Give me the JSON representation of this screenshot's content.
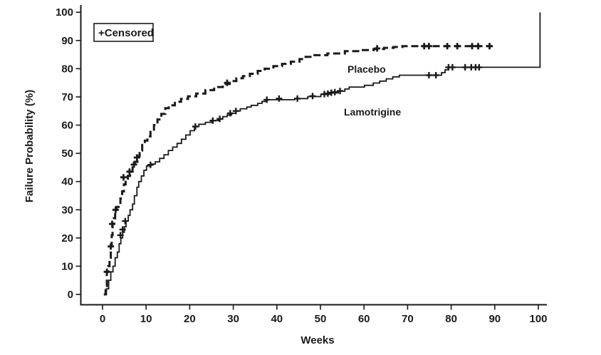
{
  "figure": {
    "background": "#ffffff",
    "ink_color": "#1a1a1a"
  },
  "legend": {
    "label": "+Censored"
  },
  "labels": {
    "placebo": "Placebo",
    "lamotrigine": "Lamotrigine"
  },
  "chart_data": {
    "type": "line",
    "subtype": "kaplan_meier_step",
    "title": "",
    "xlabel": "Weeks",
    "ylabel": "Failure Probability (%)",
    "xlim": [
      0,
      100
    ],
    "ylim": [
      0,
      100
    ],
    "x_ticks": [
      0,
      10,
      20,
      30,
      40,
      50,
      60,
      70,
      80,
      90,
      100
    ],
    "y_ticks": [
      0,
      10,
      20,
      30,
      40,
      50,
      60,
      70,
      80,
      90,
      100
    ],
    "grid": false,
    "legend_position": "top-left",
    "legend_note": "+Censored",
    "series": [
      {
        "name": "Placebo",
        "line_style": "dashed",
        "points": [
          [
            0.3,
            0
          ],
          [
            0.7,
            3
          ],
          [
            1,
            8
          ],
          [
            1.3,
            10
          ],
          [
            1.6,
            13
          ],
          [
            1.9,
            17
          ],
          [
            2.1,
            21
          ],
          [
            2.3,
            25
          ],
          [
            2.6,
            27
          ],
          [
            2.9,
            29
          ],
          [
            3.2,
            31
          ],
          [
            3.7,
            32
          ],
          [
            4.1,
            34
          ],
          [
            4.5,
            36.5
          ],
          [
            4.9,
            39
          ],
          [
            5.3,
            41
          ],
          [
            5.8,
            42
          ],
          [
            6.3,
            43.5
          ],
          [
            6.9,
            45
          ],
          [
            7.4,
            47
          ],
          [
            8,
            49
          ],
          [
            8.5,
            51
          ],
          [
            9.1,
            53
          ],
          [
            9.7,
            54.5
          ],
          [
            10.3,
            56
          ],
          [
            11,
            58
          ],
          [
            11.8,
            60
          ],
          [
            12.6,
            62
          ],
          [
            13.5,
            64
          ],
          [
            14.4,
            66
          ],
          [
            15.2,
            67
          ],
          [
            16.6,
            68.3
          ],
          [
            18,
            69.3
          ],
          [
            19.6,
            70.2
          ],
          [
            21.5,
            71.2
          ],
          [
            23.6,
            72.4
          ],
          [
            25.6,
            73.5
          ],
          [
            27.6,
            74.6
          ],
          [
            29.2,
            75.6
          ],
          [
            30.7,
            76.6
          ],
          [
            32.2,
            77.4
          ],
          [
            33.8,
            78.2
          ],
          [
            35.6,
            79.2
          ],
          [
            37.2,
            80
          ],
          [
            39.2,
            80.9
          ],
          [
            41.2,
            81.7
          ],
          [
            43.2,
            82.5
          ],
          [
            45.2,
            83.4
          ],
          [
            46.6,
            84.2
          ],
          [
            48.2,
            84.8
          ],
          [
            51.6,
            85.4
          ],
          [
            55.6,
            86.2
          ],
          [
            59.2,
            86.6
          ],
          [
            62.2,
            87
          ],
          [
            64.6,
            87.4
          ],
          [
            66.8,
            87.7
          ],
          [
            68.8,
            88
          ],
          [
            89.5,
            88
          ]
        ],
        "censored": [
          [
            1,
            8
          ],
          [
            1.9,
            17
          ],
          [
            2.2,
            25
          ],
          [
            3,
            30
          ],
          [
            4.8,
            41.5
          ],
          [
            6.2,
            43.5
          ],
          [
            7.2,
            46
          ],
          [
            7.9,
            48.5
          ],
          [
            28.6,
            75
          ],
          [
            63,
            87.2
          ],
          [
            73.8,
            88
          ],
          [
            74.9,
            88
          ],
          [
            79.1,
            88
          ],
          [
            81.4,
            88
          ],
          [
            84.8,
            88
          ],
          [
            86.2,
            88
          ],
          [
            88.8,
            88
          ]
        ]
      },
      {
        "name": "Lamotrigine",
        "line_style": "solid",
        "points": [
          [
            0.5,
            0
          ],
          [
            0.9,
            2
          ],
          [
            1.4,
            5
          ],
          [
            1.9,
            8
          ],
          [
            2.4,
            10
          ],
          [
            2.9,
            13
          ],
          [
            3.4,
            15
          ],
          [
            3.8,
            18
          ],
          [
            4.2,
            20
          ],
          [
            4.6,
            22
          ],
          [
            5,
            24
          ],
          [
            5.4,
            26
          ],
          [
            5.9,
            28
          ],
          [
            6.3,
            30
          ],
          [
            6.9,
            32
          ],
          [
            7.3,
            35
          ],
          [
            7.9,
            38
          ],
          [
            8.3,
            40
          ],
          [
            8.9,
            42
          ],
          [
            9.5,
            44
          ],
          [
            10.1,
            45.5
          ],
          [
            11.1,
            46.2
          ],
          [
            12.1,
            47
          ],
          [
            13.1,
            48.2
          ],
          [
            14.1,
            49.5
          ],
          [
            15.1,
            51
          ],
          [
            16.1,
            52.2
          ],
          [
            17.1,
            53.5
          ],
          [
            18.1,
            55
          ],
          [
            19.1,
            56.5
          ],
          [
            20.1,
            58
          ],
          [
            21.1,
            59.5
          ],
          [
            22.1,
            60.3
          ],
          [
            23.6,
            61
          ],
          [
            25.1,
            61.6
          ],
          [
            26.6,
            62.2
          ],
          [
            27.6,
            63
          ],
          [
            28.6,
            63.6
          ],
          [
            29.6,
            64.2
          ],
          [
            30.6,
            65
          ],
          [
            31.6,
            65.8
          ],
          [
            33.1,
            66.4
          ],
          [
            34.1,
            67
          ],
          [
            35.6,
            67.7
          ],
          [
            36.6,
            68.4
          ],
          [
            37.6,
            69
          ],
          [
            44.1,
            69.4
          ],
          [
            47.1,
            70.1
          ],
          [
            50.1,
            70.9
          ],
          [
            52.1,
            71.4
          ],
          [
            54.1,
            72
          ],
          [
            55.6,
            72.8
          ],
          [
            56.6,
            73.5
          ],
          [
            60.1,
            74.1
          ],
          [
            62.1,
            74.9
          ],
          [
            63.6,
            75.6
          ],
          [
            65.1,
            76.4
          ],
          [
            66.6,
            77.1
          ],
          [
            68.1,
            77.7
          ],
          [
            77.3,
            77.7
          ],
          [
            77.8,
            78.6
          ],
          [
            78.6,
            79.6
          ],
          [
            79.3,
            80.5
          ],
          [
            100.4,
            80.5
          ],
          [
            100.4,
            100
          ]
        ],
        "censored": [
          [
            4.1,
            21
          ],
          [
            4.6,
            23
          ],
          [
            5.2,
            26
          ],
          [
            11,
            45.9
          ],
          [
            21.3,
            59.5
          ],
          [
            25.3,
            61.6
          ],
          [
            26.9,
            62.2
          ],
          [
            29.3,
            64.2
          ],
          [
            30.6,
            65
          ],
          [
            37.7,
            69
          ],
          [
            40.5,
            69.4
          ],
          [
            44.7,
            69.4
          ],
          [
            48.2,
            70.3
          ],
          [
            50.9,
            71
          ],
          [
            51.7,
            71.2
          ],
          [
            52.5,
            71.5
          ],
          [
            53.3,
            71.7
          ],
          [
            54.5,
            72.1
          ],
          [
            74.9,
            77.7
          ],
          [
            76.5,
            77.7
          ],
          [
            79.4,
            80.5
          ],
          [
            80.3,
            80.5
          ],
          [
            83.2,
            80.5
          ],
          [
            84.6,
            80.5
          ],
          [
            85.6,
            80.5
          ],
          [
            86.4,
            80.5
          ]
        ]
      }
    ]
  }
}
